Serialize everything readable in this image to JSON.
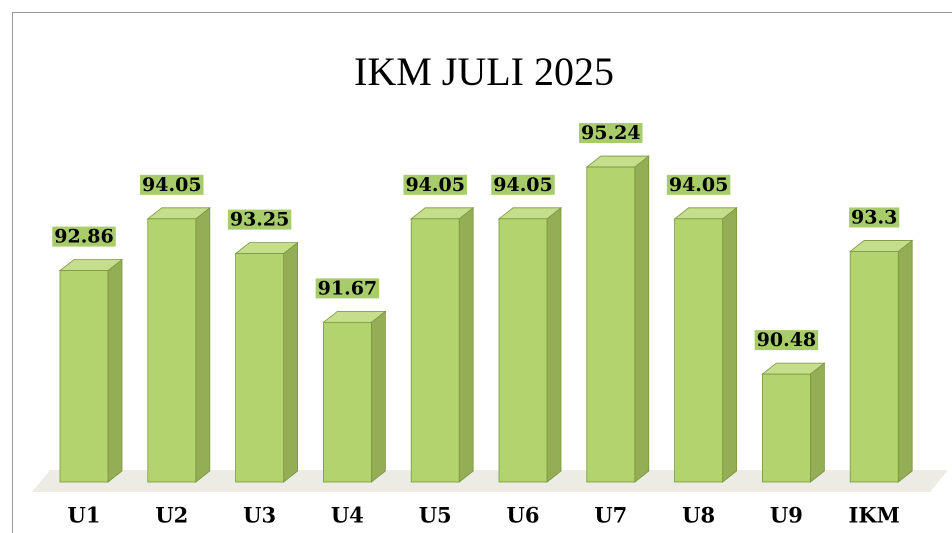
{
  "chart_data": {
    "type": "bar",
    "title": "IKM JULI 2025",
    "categories": [
      "U1",
      "U2",
      "U3",
      "U4",
      "U5",
      "U6",
      "U7",
      "U8",
      "U9",
      "IKM"
    ],
    "values": [
      92.86,
      94.05,
      93.25,
      91.67,
      94.05,
      94.05,
      95.24,
      94.05,
      90.48,
      93.3
    ],
    "color": "#b3d36e",
    "ylim": [
      88,
      96
    ]
  }
}
